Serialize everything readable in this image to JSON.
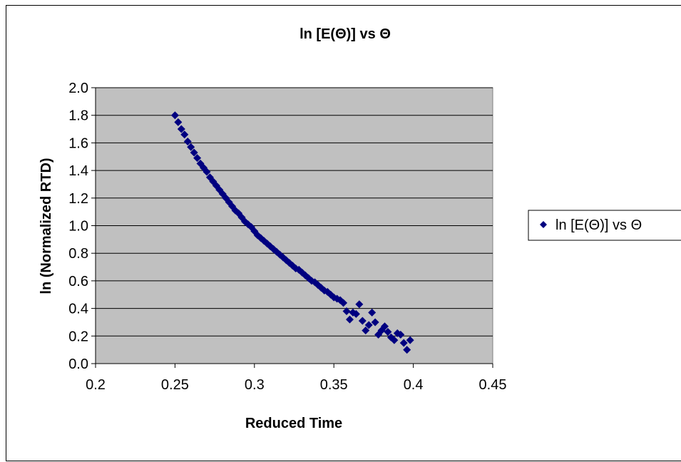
{
  "chart_data": {
    "type": "scatter",
    "title": "ln [E(Θ)]  vs  Θ",
    "xlabel": "Reduced Time",
    "ylabel": "ln (Normalized RTD)",
    "xlim": [
      0.2,
      0.45
    ],
    "ylim": [
      0.0,
      2.0
    ],
    "x_ticks": [
      "0.2",
      "0.25",
      "0.3",
      "0.35",
      "0.4",
      "0.45"
    ],
    "y_ticks": [
      "0.0",
      "0.2",
      "0.4",
      "0.6",
      "0.8",
      "1.0",
      "1.2",
      "1.4",
      "1.6",
      "1.8",
      "2.0"
    ],
    "grid": "horizontal",
    "legend_position": "right",
    "plot_background": "#c0c0c0",
    "marker": "diamond",
    "colors": {
      "series": "#000080",
      "grid": "#000000",
      "plot_bg": "#c0c0c0"
    },
    "series": [
      {
        "name": "ln [E(Θ)]  vs  Θ",
        "x": [
          0.25,
          0.252,
          0.254,
          0.256,
          0.258,
          0.26,
          0.262,
          0.264,
          0.266,
          0.268,
          0.27,
          0.272,
          0.274,
          0.276,
          0.278,
          0.28,
          0.282,
          0.284,
          0.286,
          0.288,
          0.29,
          0.292,
          0.294,
          0.296,
          0.298,
          0.3,
          0.302,
          0.304,
          0.306,
          0.308,
          0.31,
          0.312,
          0.314,
          0.316,
          0.318,
          0.32,
          0.322,
          0.324,
          0.326,
          0.328,
          0.33,
          0.332,
          0.334,
          0.336,
          0.338,
          0.34,
          0.342,
          0.344,
          0.346,
          0.348,
          0.35,
          0.352,
          0.354,
          0.356,
          0.358,
          0.36,
          0.362,
          0.364,
          0.366,
          0.368,
          0.37,
          0.372,
          0.374,
          0.376,
          0.378,
          0.38,
          0.382,
          0.384,
          0.386,
          0.388,
          0.39,
          0.392,
          0.394,
          0.396,
          0.398
        ],
        "y": [
          1.8,
          1.75,
          1.7,
          1.66,
          1.61,
          1.57,
          1.53,
          1.49,
          1.45,
          1.42,
          1.39,
          1.35,
          1.32,
          1.29,
          1.26,
          1.23,
          1.2,
          1.17,
          1.14,
          1.11,
          1.09,
          1.06,
          1.03,
          1.01,
          0.99,
          0.96,
          0.93,
          0.91,
          0.89,
          0.87,
          0.85,
          0.83,
          0.81,
          0.79,
          0.77,
          0.75,
          0.73,
          0.71,
          0.69,
          0.68,
          0.66,
          0.64,
          0.62,
          0.6,
          0.59,
          0.57,
          0.55,
          0.53,
          0.52,
          0.5,
          0.48,
          0.47,
          0.46,
          0.44,
          0.38,
          0.32,
          0.37,
          0.36,
          0.43,
          0.31,
          0.24,
          0.28,
          0.37,
          0.3,
          0.21,
          0.24,
          0.27,
          0.23,
          0.19,
          0.17,
          0.22,
          0.21,
          0.15,
          0.1,
          0.17
        ]
      }
    ]
  }
}
